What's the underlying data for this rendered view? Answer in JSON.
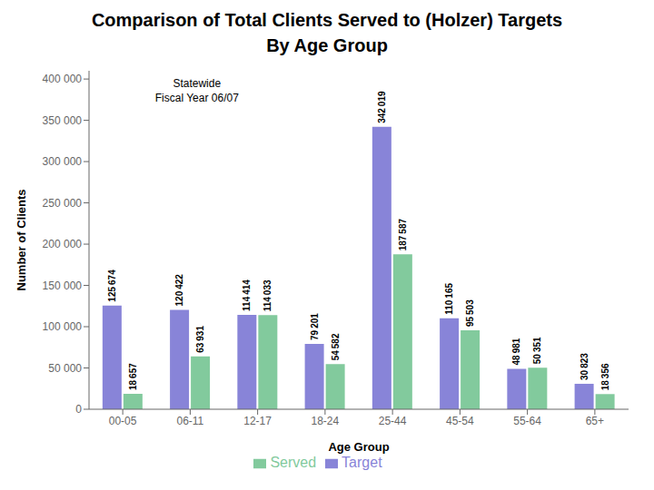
{
  "chart_data": {
    "type": "bar",
    "title": "Comparison of Total Clients Served to (Holzer) Targets\nBy Age Group",
    "subtitle": "Statewide\nFiscal Year 06/07",
    "x_label": "Age Group",
    "y_label": "Number of Clients",
    "categories": [
      "00-05",
      "06-11",
      "12-17",
      "18-24",
      "25-44",
      "45-54",
      "55-64",
      "65+"
    ],
    "series": [
      {
        "name": "Target",
        "color": "#8884d8",
        "values": [
          125674,
          120422,
          114414,
          79201,
          342019,
          110165,
          48981,
          30823
        ],
        "value_labels": [
          "125 674",
          "120 422",
          "114 414",
          "79 201",
          "342 019",
          "110 165",
          "48 981",
          "30 823"
        ]
      },
      {
        "name": "Served",
        "color": "#82ca9d",
        "values": [
          18657,
          63931,
          114033,
          54582,
          187587,
          95503,
          50351,
          18356
        ],
        "value_labels": [
          "18 657",
          "63 931",
          "114 033",
          "54 582",
          "187 587",
          "95 503",
          "50 351",
          "18 356"
        ]
      }
    ],
    "ylim": [
      0,
      410000
    ],
    "yticks": [
      0,
      {
        "value": 50000,
        "label": "50 000"
      },
      {
        "value": 100000,
        "label": "100 000"
      },
      {
        "value": 150000,
        "label": "150 000"
      },
      {
        "value": 200000,
        "label": "200 000"
      },
      {
        "value": 250000,
        "label": "250 000"
      },
      {
        "value": 300000,
        "label": "300 000"
      },
      {
        "value": 350000,
        "label": "350 000"
      },
      {
        "value": 400000,
        "label": "400 000"
      }
    ],
    "grid": false,
    "legend": "bottom",
    "data_labels": true
  }
}
